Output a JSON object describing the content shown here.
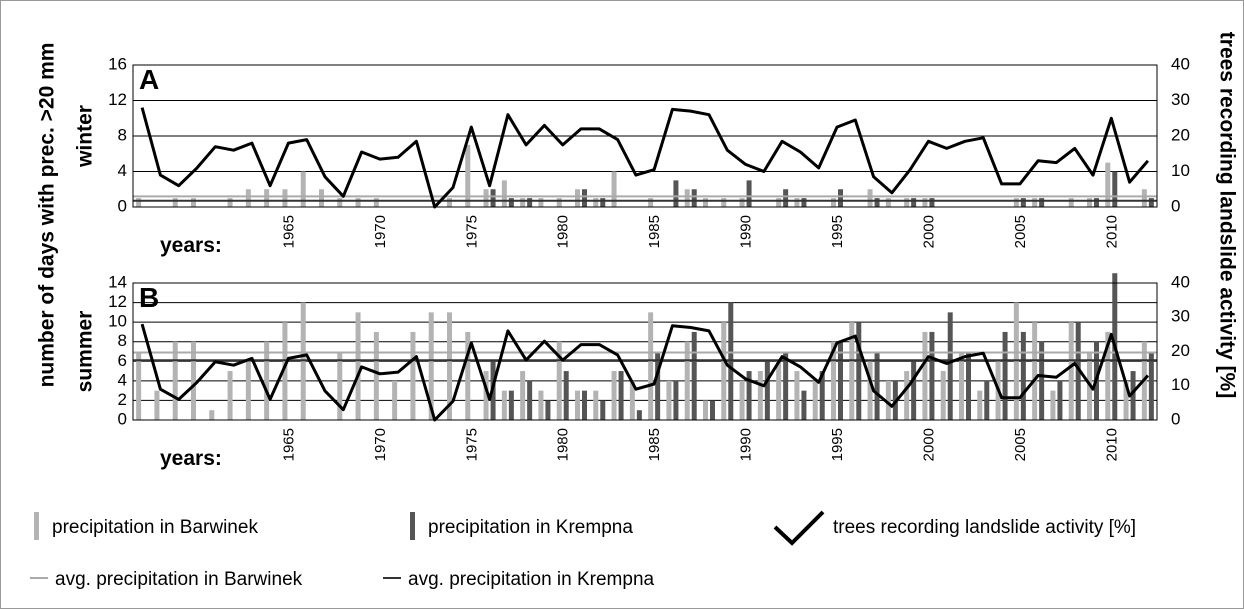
{
  "ylabel": "number of days with prec. >20 mm",
  "y2label": "trees recording landslide activity [%]",
  "chart_data": [
    {
      "type": "bar",
      "panel": "A",
      "season": "winter",
      "xlabel": "years:",
      "categories": [
        null,
        null,
        null,
        null,
        null,
        null,
        null,
        null,
        "1965",
        null,
        null,
        null,
        null,
        "1970",
        null,
        null,
        null,
        null,
        "1975",
        null,
        null,
        null,
        null,
        "1980",
        null,
        null,
        null,
        null,
        "1985",
        null,
        null,
        null,
        null,
        "1990",
        null,
        null,
        null,
        null,
        "1995",
        null,
        null,
        null,
        null,
        "2000",
        null,
        null,
        null,
        null,
        "2005",
        null,
        null,
        null,
        null,
        "2010",
        null,
        null
      ],
      "ylim": [
        0,
        16
      ],
      "yticks": [
        0,
        4,
        8,
        12,
        16
      ],
      "y2lim": [
        0,
        40
      ],
      "y2ticks": [
        0,
        10,
        20,
        30,
        40
      ],
      "grid": true,
      "series": [
        {
          "name": "precipitation in Barwinek",
          "color": "#b3b3b3",
          "values": [
            1,
            0,
            1,
            1,
            0,
            1,
            2,
            2,
            2,
            4,
            2,
            1,
            1,
            1,
            0,
            0,
            0,
            1,
            7,
            2,
            3,
            1,
            1,
            1,
            2,
            1,
            4,
            0,
            1,
            0,
            2,
            1,
            1,
            1,
            0,
            1,
            1,
            0,
            1,
            0,
            2,
            1,
            1,
            1,
            0,
            0,
            0,
            0,
            1,
            1,
            0,
            1,
            1,
            5,
            0,
            2
          ]
        },
        {
          "name": "precipitation in Krempna",
          "color": "#555555",
          "values": [
            null,
            null,
            null,
            null,
            null,
            null,
            null,
            null,
            null,
            null,
            null,
            null,
            null,
            null,
            null,
            null,
            null,
            null,
            null,
            2,
            1,
            1,
            0,
            0,
            2,
            1,
            0,
            0,
            0,
            3,
            2,
            0,
            0,
            3,
            0,
            2,
            1,
            0,
            2,
            0,
            1,
            0,
            1,
            1,
            0,
            0,
            0,
            0,
            1,
            1,
            0,
            0,
            1,
            4,
            0,
            1
          ]
        },
        {
          "name": "trees recording landslide activity [%]",
          "type": "line",
          "axis": "y2",
          "color": "#000000",
          "values": [
            28,
            9,
            6,
            11,
            17,
            16,
            18,
            6,
            18,
            19,
            8.5,
            3,
            15.5,
            13.5,
            14,
            18.5,
            0,
            5.5,
            22.5,
            6,
            26,
            17.5,
            23,
            17.5,
            22,
            22,
            19,
            9,
            10.5,
            27.5,
            27,
            26,
            16,
            12,
            10,
            18.5,
            15.5,
            11,
            22.5,
            24.5,
            8.5,
            4,
            10.5,
            18.5,
            16.5,
            18.5,
            19.5,
            6.5,
            6.5,
            13,
            12.5,
            16.5,
            9,
            25,
            7,
            13
          ]
        },
        {
          "name": "avg. precipitation in Barwinek",
          "type": "hline",
          "color": "#aaaaaa",
          "value": 1.2
        },
        {
          "name": "avg. precipitation in Krempna",
          "type": "hline",
          "color": "#333333",
          "value": 0.7
        }
      ]
    },
    {
      "type": "bar",
      "panel": "B",
      "season": "summer",
      "xlabel": "years:",
      "categories": [
        null,
        null,
        null,
        null,
        null,
        null,
        null,
        null,
        "1965",
        null,
        null,
        null,
        null,
        "1970",
        null,
        null,
        null,
        null,
        "1975",
        null,
        null,
        null,
        null,
        "1980",
        null,
        null,
        null,
        null,
        "1985",
        null,
        null,
        null,
        null,
        "1990",
        null,
        null,
        null,
        null,
        "1995",
        null,
        null,
        null,
        null,
        "2000",
        null,
        null,
        null,
        null,
        "2005",
        null,
        null,
        null,
        null,
        "2010",
        null,
        null
      ],
      "ylim": [
        0,
        14
      ],
      "yticks": [
        0,
        2,
        4,
        6,
        8,
        10,
        12,
        14
      ],
      "y2lim": [
        0,
        40
      ],
      "y2ticks": [
        0,
        10,
        20,
        30,
        40
      ],
      "grid": true,
      "series": [
        {
          "name": "precipitation in Barwinek",
          "color": "#b3b3b3",
          "values": [
            7,
            3,
            8,
            8,
            1,
            5,
            6,
            8,
            10,
            12,
            0,
            7,
            11,
            9,
            4,
            9,
            11,
            11,
            9,
            5,
            3,
            5,
            3,
            8,
            3,
            3,
            5,
            4,
            11,
            4,
            8,
            2,
            10,
            4,
            5,
            6,
            5,
            4,
            8,
            10,
            6,
            4,
            5,
            9,
            5,
            7,
            3,
            6,
            12,
            10,
            3,
            10,
            7,
            9,
            4,
            8
          ]
        },
        {
          "name": "precipitation in Krempna",
          "color": "#555555",
          "values": [
            null,
            null,
            null,
            null,
            null,
            null,
            null,
            null,
            null,
            null,
            null,
            null,
            null,
            null,
            null,
            null,
            null,
            null,
            null,
            6,
            3,
            4,
            2,
            5,
            3,
            2,
            5,
            1,
            7,
            4,
            9,
            2,
            12,
            5,
            6,
            7,
            3,
            5,
            8,
            10,
            7,
            4,
            6,
            9,
            11,
            7,
            4,
            9,
            9,
            8,
            4,
            10,
            8,
            15,
            5,
            7
          ]
        },
        {
          "name": "trees recording landslide activity [%]",
          "type": "line",
          "axis": "y2",
          "color": "#000000",
          "values": [
            28,
            9,
            6,
            11,
            17,
            16,
            18,
            6,
            18,
            19,
            8.5,
            3,
            15.5,
            13.5,
            14,
            18.5,
            0,
            5.5,
            22.5,
            6,
            26,
            17.5,
            23,
            17.5,
            22,
            22,
            19,
            9,
            10.5,
            27.5,
            27,
            26,
            16,
            12,
            10,
            18.5,
            15.5,
            11,
            22.5,
            24.5,
            8.5,
            4,
            10.5,
            18.5,
            16.5,
            18.5,
            19.5,
            6.5,
            6.5,
            13,
            12.5,
            16.5,
            9,
            25,
            7,
            13
          ]
        },
        {
          "name": "avg. precipitation in Barwinek",
          "type": "hline",
          "color": "#aaaaaa",
          "value": 6.9
        },
        {
          "name": "avg. precipitation in Krempna",
          "type": "hline",
          "color": "#333333",
          "value": 6.1
        }
      ]
    }
  ]
}
